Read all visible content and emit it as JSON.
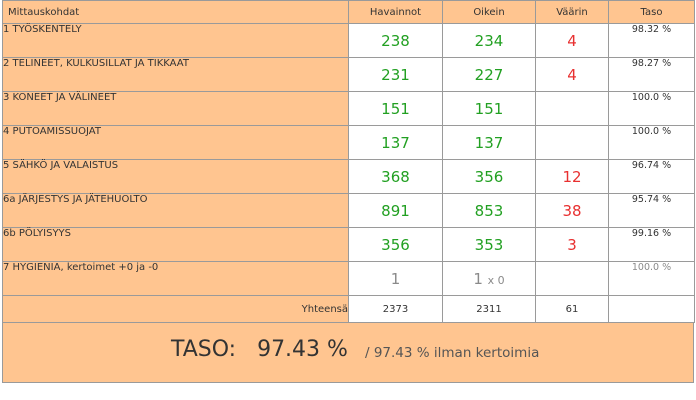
{
  "header": {
    "category": "Mittauskohdat",
    "observations": "Havainnot",
    "correct": "Oikein",
    "wrong": "Väärin",
    "level": "Taso"
  },
  "rows": [
    {
      "label": "1 TYÖSKENTELY",
      "observations": "238",
      "correct": "234",
      "wrong": "4",
      "level": "98.32 %"
    },
    {
      "label": "2 TELINEET, KULKUSILLAT JA TIKKAAT",
      "observations": "231",
      "correct": "227",
      "wrong": "4",
      "level": "98.27 %"
    },
    {
      "label": "3 KONEET JA VÄLINEET",
      "observations": "151",
      "correct": "151",
      "wrong": "",
      "level": "100.0 %"
    },
    {
      "label": "4 PUTOAMISSUOJAT",
      "observations": "137",
      "correct": "137",
      "wrong": "",
      "level": "100.0 %"
    },
    {
      "label": "5 SÄHKÖ JA VALAISTUS",
      "observations": "368",
      "correct": "356",
      "wrong": "12",
      "level": "96.74 %"
    },
    {
      "label": "6a JÄRJESTYS JA JÄTEHUOLTO",
      "observations": "891",
      "correct": "853",
      "wrong": "38",
      "level": "95.74 %"
    },
    {
      "label": "6b PÖLYISYYS",
      "observations": "356",
      "correct": "353",
      "wrong": "3",
      "level": "99.16 %"
    },
    {
      "label": "7 HYGIENIA, kertoimet +0 ja -0",
      "observations": "1",
      "correct": "1",
      "correct_multiplier": "x 0",
      "wrong": "",
      "level": "100.0 %"
    }
  ],
  "totals": {
    "label": "Yhteensä",
    "observations": "2373",
    "correct": "2311",
    "wrong": "61",
    "level": ""
  },
  "summary": {
    "main": "TASO:   97.43 %",
    "secondary": "/ 97.43 % ilman kertoimia"
  },
  "colors": {
    "header_bg": "#ffc590",
    "correct_green": "#22a022",
    "wrong_red": "#e83030",
    "muted_gray": "#8a8a8a"
  }
}
